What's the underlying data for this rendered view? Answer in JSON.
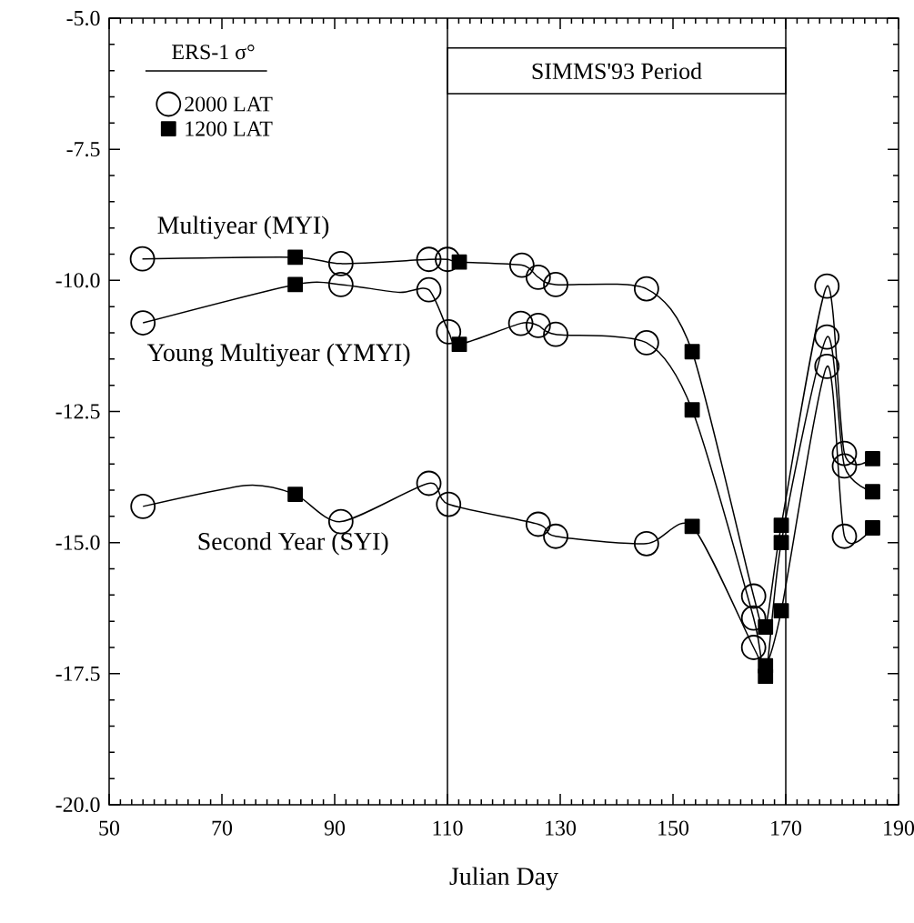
{
  "chart_data": {
    "type": "line",
    "xlabel": "Julian Day",
    "legend_title": "ERS-1 σ°",
    "legend": "top left",
    "xlim": [
      50,
      190
    ],
    "xticks": [
      50,
      70,
      90,
      110,
      130,
      150,
      170,
      190
    ],
    "ylim": [
      -20,
      -5
    ],
    "yticks": [
      {
        "value": -20,
        "label": "-20.0"
      },
      {
        "value": -17.5,
        "label": "-17.5"
      },
      {
        "value": -15,
        "label": "-15.0"
      },
      {
        "value": -12.5,
        "label": "-12.5"
      },
      {
        "value": -10,
        "label": "-10.0"
      },
      {
        "value": -7.5,
        "label": "-7.5"
      },
      {
        "value": -5,
        "label": "-5.0"
      }
    ],
    "ref_lines": [
      {
        "axis": "x",
        "value": 110
      },
      {
        "axis": "x",
        "value": 170
      }
    ],
    "annotations": [
      "SIMMS'93 Period"
    ],
    "series": [
      {
        "name": "Multiyear (MYI)",
        "color": "#000000",
        "marker": "none",
        "line_style": "solid",
        "x": [
          55.9,
          83.0,
          91.1,
          106.7,
          110.0,
          112.1,
          123.2,
          126.1,
          129.2,
          145.3,
          153.4,
          164.3,
          166.4,
          169.2,
          177.3,
          180.4,
          185.4
        ],
        "values": [
          -9.59,
          -9.56,
          -9.68,
          -9.6,
          -9.6,
          -9.65,
          -9.71,
          -9.94,
          -10.08,
          -10.16,
          -11.36,
          -16.02,
          -16.61,
          -14.67,
          -10.11,
          -13.3,
          -13.4
        ]
      },
      {
        "name": "Young Multiyear (YMYI)",
        "color": "#000000",
        "marker": "none",
        "line_style": "solid",
        "x": [
          56.0,
          83.0,
          91.1,
          101.5,
          106.7,
          110.2,
          112.1,
          123.0,
          126.1,
          129.2,
          145.3,
          153.4,
          164.3,
          166.4,
          169.2,
          177.3,
          180.4,
          185.4
        ],
        "values": [
          -10.81,
          -10.08,
          -10.08,
          -10.23,
          -10.18,
          -10.98,
          -11.22,
          -10.82,
          -10.86,
          -11.03,
          -11.19,
          -12.47,
          -16.44,
          -17.55,
          -15.0,
          -11.08,
          -13.54,
          -14.03
        ]
      },
      {
        "name": "Second Year (SYI)",
        "color": "#000000",
        "marker": "none",
        "line_style": "solid",
        "x": [
          56.0,
          74.4,
          83.0,
          91.1,
          106.7,
          110.2,
          126.1,
          129.2,
          145.3,
          153.4,
          164.3,
          166.4,
          169.2,
          177.3,
          180.4,
          185.4
        ],
        "values": [
          -14.31,
          -13.91,
          -14.08,
          -14.6,
          -13.87,
          -14.27,
          -14.65,
          -14.88,
          -15.02,
          -14.69,
          -17.0,
          -17.35,
          -16.3,
          -11.64,
          -14.88,
          -14.72
        ]
      },
      {
        "name": "2000 LAT",
        "type": "scatter",
        "color": "#000000",
        "marker": "circle",
        "x": [
          55.9,
          91.1,
          106.7,
          110.0,
          123.2,
          126.1,
          129.2,
          145.3,
          164.3,
          177.3,
          180.4,
          56.0,
          91.1,
          106.7,
          110.2,
          123.0,
          126.1,
          129.2,
          145.3,
          164.3,
          177.3,
          180.4,
          56.0,
          91.1,
          106.7,
          110.2,
          126.1,
          129.2,
          145.3,
          164.3,
          177.3,
          180.4
        ],
        "values": [
          -9.59,
          -9.68,
          -9.6,
          -9.6,
          -9.71,
          -9.94,
          -10.08,
          -10.16,
          -16.02,
          -10.11,
          -13.3,
          -10.81,
          -10.08,
          -10.18,
          -10.98,
          -10.82,
          -10.86,
          -11.03,
          -11.19,
          -16.44,
          -11.08,
          -13.54,
          -14.31,
          -14.6,
          -13.87,
          -14.27,
          -14.65,
          -14.88,
          -15.02,
          -17.0,
          -11.64,
          -14.88
        ]
      },
      {
        "name": "1200 LAT",
        "type": "scatter",
        "color": "#000000",
        "marker": "square",
        "x": [
          83.0,
          112.1,
          153.4,
          166.4,
          169.2,
          185.4,
          83.0,
          112.1,
          153.4,
          166.4,
          169.2,
          185.4,
          83.0,
          153.4,
          166.4,
          169.2,
          185.4
        ],
        "values": [
          -9.56,
          -9.65,
          -11.36,
          -16.61,
          -14.67,
          -13.4,
          -10.08,
          -11.22,
          -12.47,
          -17.55,
          -15.0,
          -14.03,
          -14.08,
          -14.69,
          -17.35,
          -16.3,
          -14.72
        ]
      }
    ]
  }
}
